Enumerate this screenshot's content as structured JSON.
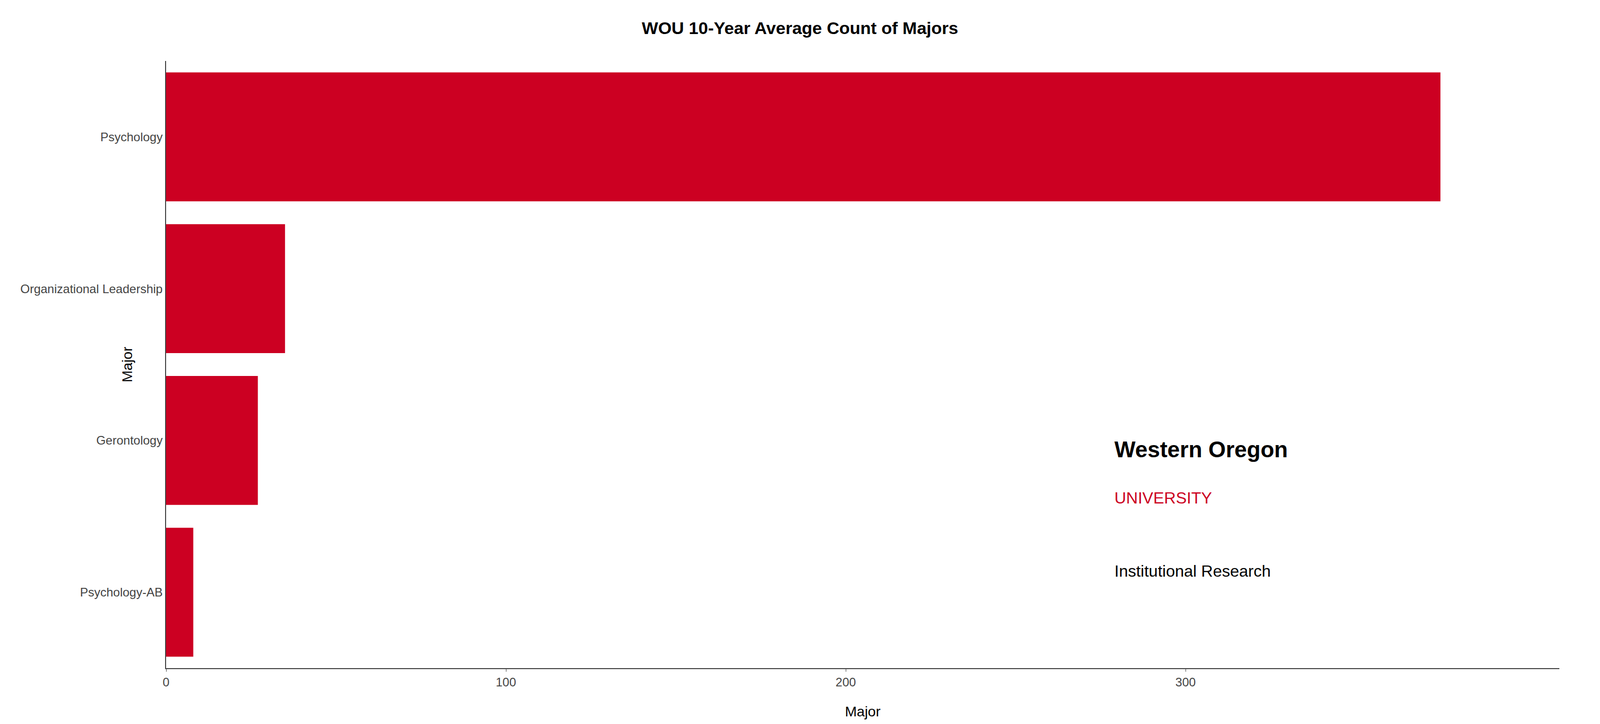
{
  "chart_data": {
    "type": "bar",
    "orientation": "horizontal",
    "title": "WOU 10-Year Average Count of Majors",
    "xlabel": "Major",
    "ylabel": "Major",
    "categories": [
      "Psychology",
      "Organizational Leadership",
      "Gerontology",
      "Psychology-AB"
    ],
    "values": [
      375,
      35,
      27,
      8
    ],
    "color": "#CC0022",
    "xlim": [
      0,
      410
    ],
    "xticks": [
      0,
      100,
      200,
      300
    ],
    "grid": false,
    "annotations": [
      "Western Oregon",
      "UNIVERSITY",
      "Institutional Research"
    ]
  }
}
